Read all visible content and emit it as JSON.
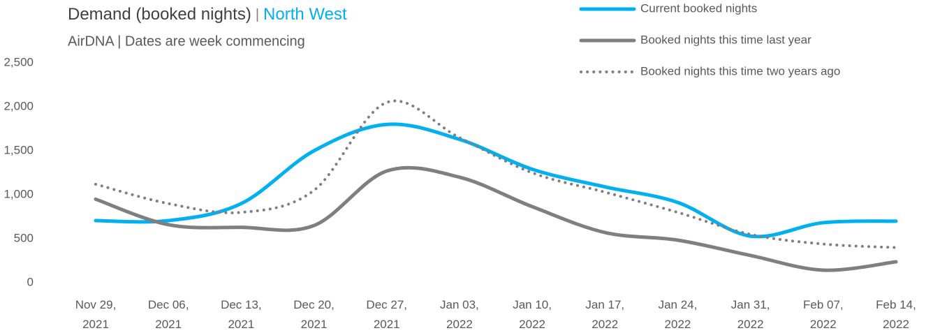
{
  "chart_data": {
    "type": "line",
    "title_parts": [
      "Demand (booked nights)",
      "|",
      "North West"
    ],
    "title_colors": [
      "#404040",
      "#7f7f7f",
      "#00b0f0"
    ],
    "subtitle": "AirDNA | Dates are week commencing",
    "categories": [
      "Nov 29, 2021",
      "Dec 06, 2021",
      "Dec 13, 2021",
      "Dec 20, 2021",
      "Dec 27, 2021",
      "Jan 03, 2022",
      "Jan 10, 2022",
      "Jan 17, 2022",
      "Jan 24, 2022",
      "Jan 31, 2022",
      "Feb 07, 2022",
      "Feb 14, 2022"
    ],
    "series": [
      {
        "name": "Current booked nights",
        "color": "#00b0f0",
        "dash": "solid",
        "values": [
          706,
          706,
          900,
          1500,
          1800,
          1630,
          1290,
          1090,
          913,
          530,
          683,
          700
        ]
      },
      {
        "name": "Booked nights this time last year",
        "color": "#7f7f7f",
        "dash": "solid",
        "values": [
          950,
          660,
          630,
          650,
          1270,
          1200,
          865,
          571,
          484,
          310,
          143,
          238
        ]
      },
      {
        "name": "Booked nights this time two years ago",
        "color": "#7f7f7f",
        "dash": "dotted",
        "values": [
          1120,
          900,
          800,
          1050,
          2050,
          1650,
          1250,
          1030,
          800,
          550,
          440,
          400
        ]
      }
    ],
    "ylim": [
      0,
      2500
    ],
    "yticks": [
      0,
      500,
      {
        "value": 1000,
        "label": "1,000"
      },
      {
        "value": 1500,
        "label": "1,500"
      },
      {
        "value": 2000,
        "label": "2,000"
      },
      {
        "value": 2500,
        "label": "2,500"
      }
    ],
    "grid": false,
    "legend": "top-right"
  }
}
